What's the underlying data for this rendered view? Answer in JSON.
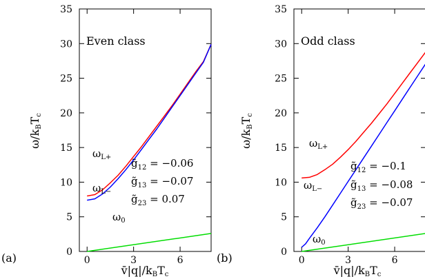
{
  "chart_data": [
    {
      "type": "line",
      "panel_label": "(a)",
      "class_label": "Even class",
      "xlabel": "v̄|q|/k_BT_c",
      "ylabel": "ω/k_BT_c",
      "xlim": [
        -0.5,
        8
      ],
      "ylim": [
        0,
        35
      ],
      "xticks": [
        0,
        3,
        6
      ],
      "yticks": [
        0,
        5,
        10,
        15,
        20,
        25,
        30,
        35
      ],
      "params": [
        {
          "sym": "g̃",
          "sub": "12",
          "value": "−0.06"
        },
        {
          "sym": "g̃",
          "sub": "13",
          "value": "−0.07"
        },
        {
          "sym": "g̃",
          "sub": "23",
          "value": "0.07"
        }
      ],
      "series": [
        {
          "name": "ω_L+",
          "color": "#ff0000",
          "x": [
            0,
            0.5,
            1,
            1.5,
            2,
            2.5,
            3,
            3.5,
            4,
            4.5,
            5,
            5.5,
            6,
            6.5,
            7,
            7.5,
            8
          ],
          "y": [
            8.0,
            8.2,
            8.9,
            9.9,
            11.0,
            12.3,
            13.7,
            15.1,
            16.6,
            18.1,
            19.6,
            21.1,
            22.7,
            24.3,
            25.9,
            27.4,
            29.9
          ]
        },
        {
          "name": "ω_L−",
          "color": "#0000ff",
          "x": [
            0,
            0.5,
            1,
            1.5,
            2,
            2.5,
            3,
            3.5,
            4,
            4.5,
            5,
            5.5,
            6,
            6.5,
            7,
            7.5,
            8
          ],
          "y": [
            7.4,
            7.6,
            8.3,
            9.3,
            10.5,
            11.8,
            13.2,
            14.7,
            16.2,
            17.7,
            19.3,
            20.9,
            22.5,
            24.1,
            25.7,
            27.3,
            29.9
          ]
        },
        {
          "name": "ω_0",
          "color": "#00dd00",
          "x": [
            0,
            8
          ],
          "y": [
            0,
            2.6
          ]
        }
      ]
    },
    {
      "type": "line",
      "panel_label": "(b)",
      "class_label": "Odd class",
      "xlabel": "v̄|q|/k_BT_c",
      "ylabel": "ω/k_BT_c",
      "xlim": [
        -0.5,
        8
      ],
      "ylim": [
        0,
        35
      ],
      "xticks": [
        0,
        3,
        6
      ],
      "yticks": [
        0,
        5,
        10,
        15,
        20,
        25,
        30,
        35
      ],
      "params": [
        {
          "sym": "g̃",
          "sub": "12",
          "value": "−0.1"
        },
        {
          "sym": "g̃",
          "sub": "13",
          "value": "−0.08"
        },
        {
          "sym": "g̃",
          "sub": "23",
          "value": "−0.07"
        }
      ],
      "series": [
        {
          "name": "ω_L+",
          "color": "#ff0000",
          "x": [
            0,
            0.5,
            1,
            1.5,
            2,
            2.5,
            3,
            3.5,
            4,
            4.5,
            5,
            5.5,
            6,
            6.5,
            7,
            7.5,
            8
          ],
          "y": [
            10.6,
            10.7,
            11.1,
            11.8,
            12.6,
            13.6,
            14.7,
            15.9,
            17.2,
            18.5,
            19.9,
            21.3,
            22.8,
            24.3,
            25.8,
            27.3,
            28.8
          ]
        },
        {
          "name": "ω_L−",
          "color": "#0000ff",
          "x": [
            0,
            0.25,
            0.5,
            1,
            1.5,
            2,
            2.5,
            3,
            3.5,
            4,
            4.5,
            5,
            5.5,
            6,
            6.5,
            7,
            7.5,
            8
          ],
          "y": [
            0.6,
            1.1,
            1.9,
            3.4,
            5.0,
            6.7,
            8.4,
            10.1,
            11.8,
            13.5,
            15.2,
            16.9,
            18.6,
            20.3,
            22.0,
            23.7,
            25.4,
            27.1
          ]
        },
        {
          "name": "ω_0",
          "color": "#00dd00",
          "x": [
            0,
            8
          ],
          "y": [
            0,
            2.6
          ]
        }
      ]
    }
  ]
}
